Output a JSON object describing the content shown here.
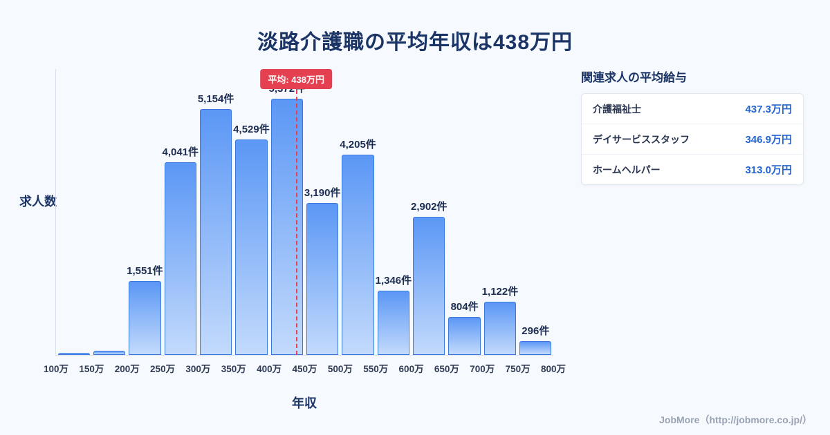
{
  "title": "淡路介護職の平均年収は438万円",
  "chart_data": {
    "type": "bar",
    "title": "淡路介護職の平均年収は438万円",
    "xlabel": "年収",
    "ylabel": "求人数",
    "categories": [
      "100-150万",
      "150-200万",
      "200-250万",
      "250-300万",
      "300-350万",
      "350-400万",
      "400-450万",
      "450-500万",
      "500-550万",
      "550-600万",
      "600-650万",
      "650-700万",
      "700-750万",
      "750-800万"
    ],
    "values": [
      50,
      80,
      1551,
      4041,
      5154,
      4529,
      5372,
      3190,
      4205,
      1346,
      2902,
      804,
      1122,
      296
    ],
    "bar_labels": [
      "",
      "",
      "1,551件",
      "4,041件",
      "5,154件",
      "4,529件",
      "5,372件",
      "3,190件",
      "4,205件",
      "1,346件",
      "2,902件",
      "804件",
      "1,122件",
      "296件"
    ],
    "tick_labels": [
      "100万",
      "150万",
      "200万",
      "250万",
      "300万",
      "350万",
      "400万",
      "450万",
      "500万",
      "550万",
      "600万",
      "650万",
      "700万",
      "750万",
      "800万"
    ],
    "x_range": [
      100,
      800
    ],
    "ylim": [
      0,
      6000
    ],
    "grid": false,
    "legend": "none",
    "mean": 438,
    "mean_label": "平均: 438万円",
    "bar_color_top": "#5b97f5",
    "bar_color_bottom": "#c3dafc",
    "bar_border_color": "#3a78dd",
    "mean_color": "#e4404f"
  },
  "panel": {
    "title": "関連求人の平均給与",
    "rows": [
      {
        "label": "介護福祉士",
        "value": "437.3万円"
      },
      {
        "label": "デイサービススタッフ",
        "value": "346.9万円"
      },
      {
        "label": "ホームヘルパー",
        "value": "313.0万円"
      }
    ]
  },
  "footer": {
    "credit": "JobMore（http://jobmore.co.jp/）"
  }
}
